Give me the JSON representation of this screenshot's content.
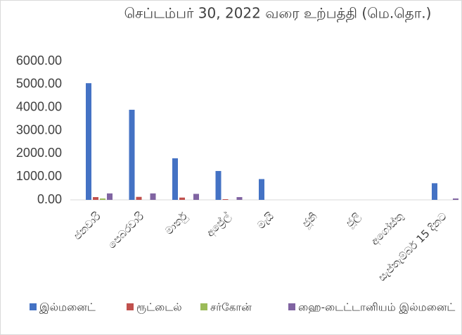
{
  "chart_data": {
    "type": "bar",
    "title": "செப்டம்பர் 30, 2022 வரை உற்பத்தி (மெ.தொ.)",
    "categories": [
      "ජනවාරි",
      "පෙබරවාරි",
      "මාර්තු",
      "අප්‍රේල්",
      "මැයි",
      "ජූනි",
      "ජූලි",
      "අගෝස්තු",
      "සැප්තැම්බර් 15 දිනට"
    ],
    "series": [
      {
        "name": "இல்மனைட்",
        "color": "#4472c4",
        "values": [
          5050,
          3900,
          1800,
          1250,
          900,
          0,
          0,
          0,
          720
        ]
      },
      {
        "name": "ரூட்டைல்",
        "color": "#c0504d",
        "values": [
          120,
          130,
          100,
          30,
          0,
          0,
          0,
          0,
          0
        ]
      },
      {
        "name": "சர்கோன்",
        "color": "#9bbb59",
        "values": [
          60,
          0,
          0,
          0,
          0,
          0,
          0,
          0,
          0
        ]
      },
      {
        "name": "ஹை-டைட்டானியம் இல்மனைட்",
        "color": "#8064a2",
        "values": [
          280,
          280,
          260,
          120,
          0,
          0,
          0,
          0,
          60
        ]
      }
    ],
    "ylim": [
      0,
      6000
    ],
    "yticks": [
      {
        "value": 0,
        "label": "0.00"
      },
      {
        "value": 1000,
        "label": "1000.00"
      },
      {
        "value": 2000,
        "label": "2000.00"
      },
      {
        "value": 3000,
        "label": "3000.00"
      },
      {
        "value": 4000,
        "label": "4000.00"
      },
      {
        "value": 5000,
        "label": "5000.00"
      },
      {
        "value": 6000,
        "label": "6000.00"
      }
    ],
    "legend": "bottom"
  }
}
